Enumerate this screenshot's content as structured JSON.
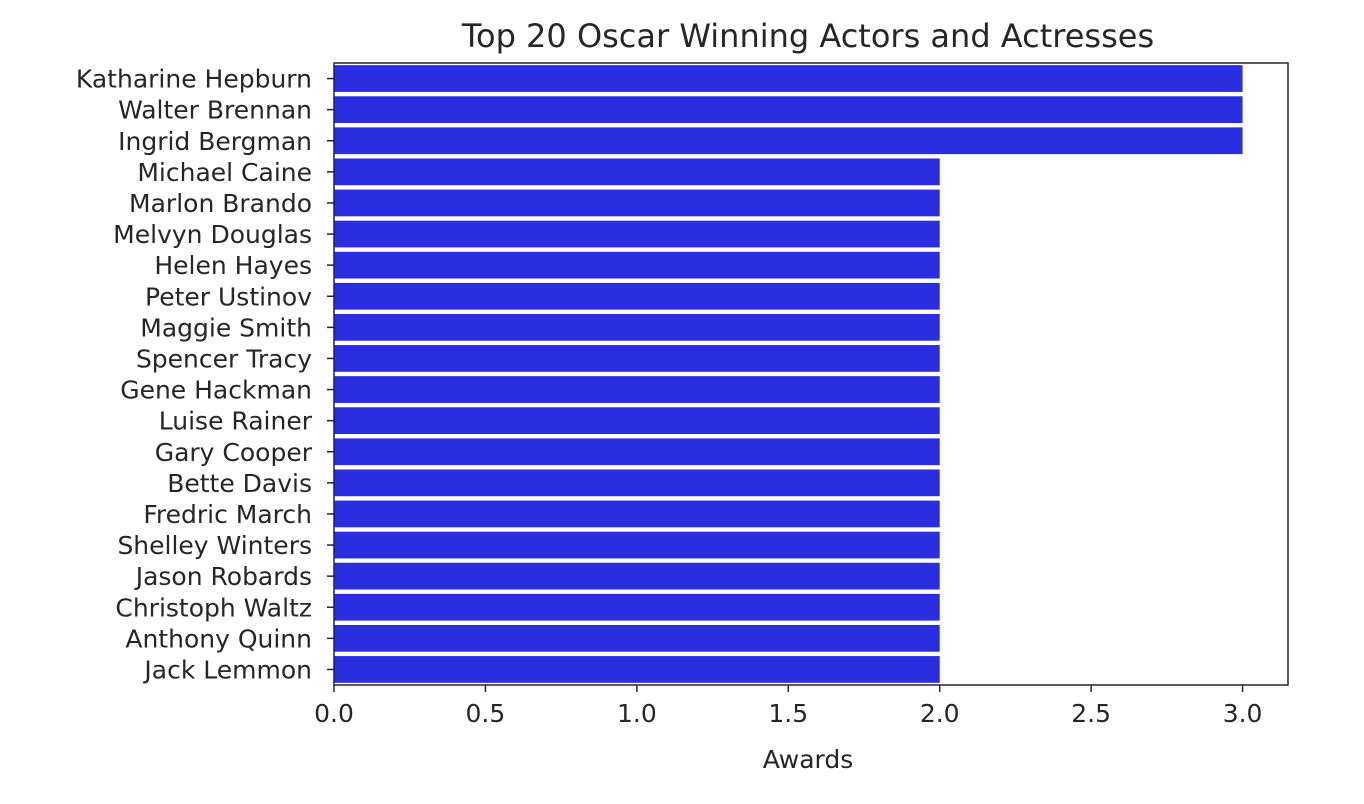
{
  "chart_data": {
    "type": "bar",
    "orientation": "horizontal",
    "title": "Top 20 Oscar Winning Actors and Actresses",
    "xlabel": "Awards",
    "ylabel": "",
    "categories": [
      "Katharine Hepburn",
      "Walter Brennan",
      "Ingrid Bergman",
      "Michael Caine",
      "Marlon Brando",
      "Melvyn Douglas",
      "Helen Hayes",
      "Peter Ustinov",
      "Maggie Smith",
      "Spencer Tracy",
      "Gene Hackman",
      "Luise Rainer",
      "Gary Cooper",
      "Bette Davis",
      "Fredric March",
      "Shelley Winters",
      "Jason Robards",
      "Christoph Waltz",
      "Anthony Quinn",
      "Jack Lemmon"
    ],
    "values": [
      3,
      3,
      3,
      2,
      2,
      2,
      2,
      2,
      2,
      2,
      2,
      2,
      2,
      2,
      2,
      2,
      2,
      2,
      2,
      2
    ],
    "xlim": [
      0,
      3.15
    ],
    "xticks": [
      0.0,
      0.5,
      1.0,
      1.5,
      2.0,
      2.5,
      3.0
    ],
    "xtick_labels": [
      "0.0",
      "0.5",
      "1.0",
      "1.5",
      "2.0",
      "2.5",
      "3.0"
    ],
    "grid": false,
    "legend": "none",
    "bar_color": "#2a2ee0"
  }
}
